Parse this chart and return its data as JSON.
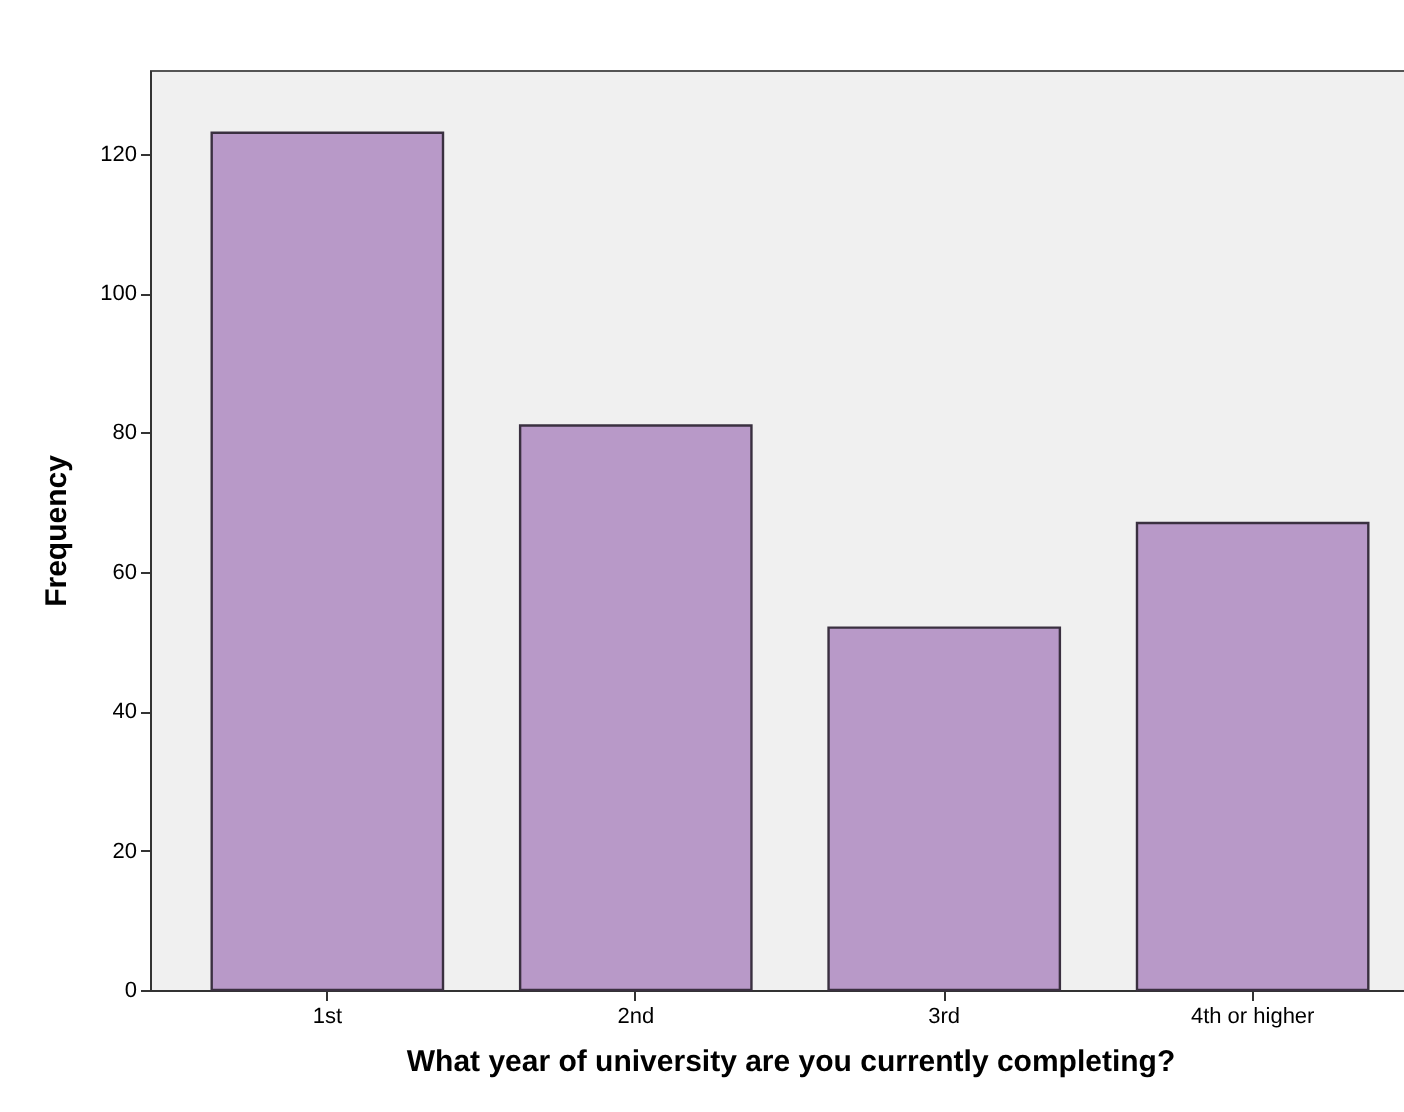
{
  "chart_data": {
    "type": "bar",
    "xlabel": "What year of university are you currently completing?",
    "ylabel": "Frequency",
    "categories": [
      "1st",
      "2nd",
      "3rd",
      "4th or higher"
    ],
    "values": [
      123,
      81,
      52,
      67
    ],
    "color": "#b899c8",
    "ylim": [
      0,
      132
    ],
    "yticks": [
      0,
      20,
      40,
      60,
      80,
      100,
      120
    ],
    "grid": false
  }
}
